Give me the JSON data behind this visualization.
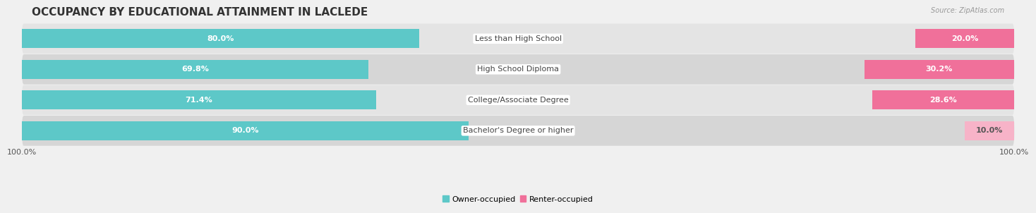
{
  "title": "OCCUPANCY BY EDUCATIONAL ATTAINMENT IN LACLEDE",
  "source": "Source: ZipAtlas.com",
  "categories": [
    "Less than High School",
    "High School Diploma",
    "College/Associate Degree",
    "Bachelor's Degree or higher"
  ],
  "owner_values": [
    80.0,
    69.8,
    71.4,
    90.0
  ],
  "renter_values": [
    20.0,
    30.2,
    28.6,
    10.0
  ],
  "owner_color": "#5DC8C8",
  "renter_color_strong": "#F0709A",
  "renter_color_light": "#F7B3C8",
  "owner_light": "#C8EDED",
  "bar_height": 0.62,
  "row_colors": [
    "#e8e8e8",
    "#d8d8d8"
  ],
  "background_color": "#f0f0f0",
  "title_color": "#333333",
  "label_color_white": "#ffffff",
  "label_color_dark": "#555555",
  "tick_label": "100.0%",
  "title_fontsize": 11,
  "label_fontsize": 8,
  "tick_fontsize": 8,
  "legend_fontsize": 8,
  "source_fontsize": 7
}
